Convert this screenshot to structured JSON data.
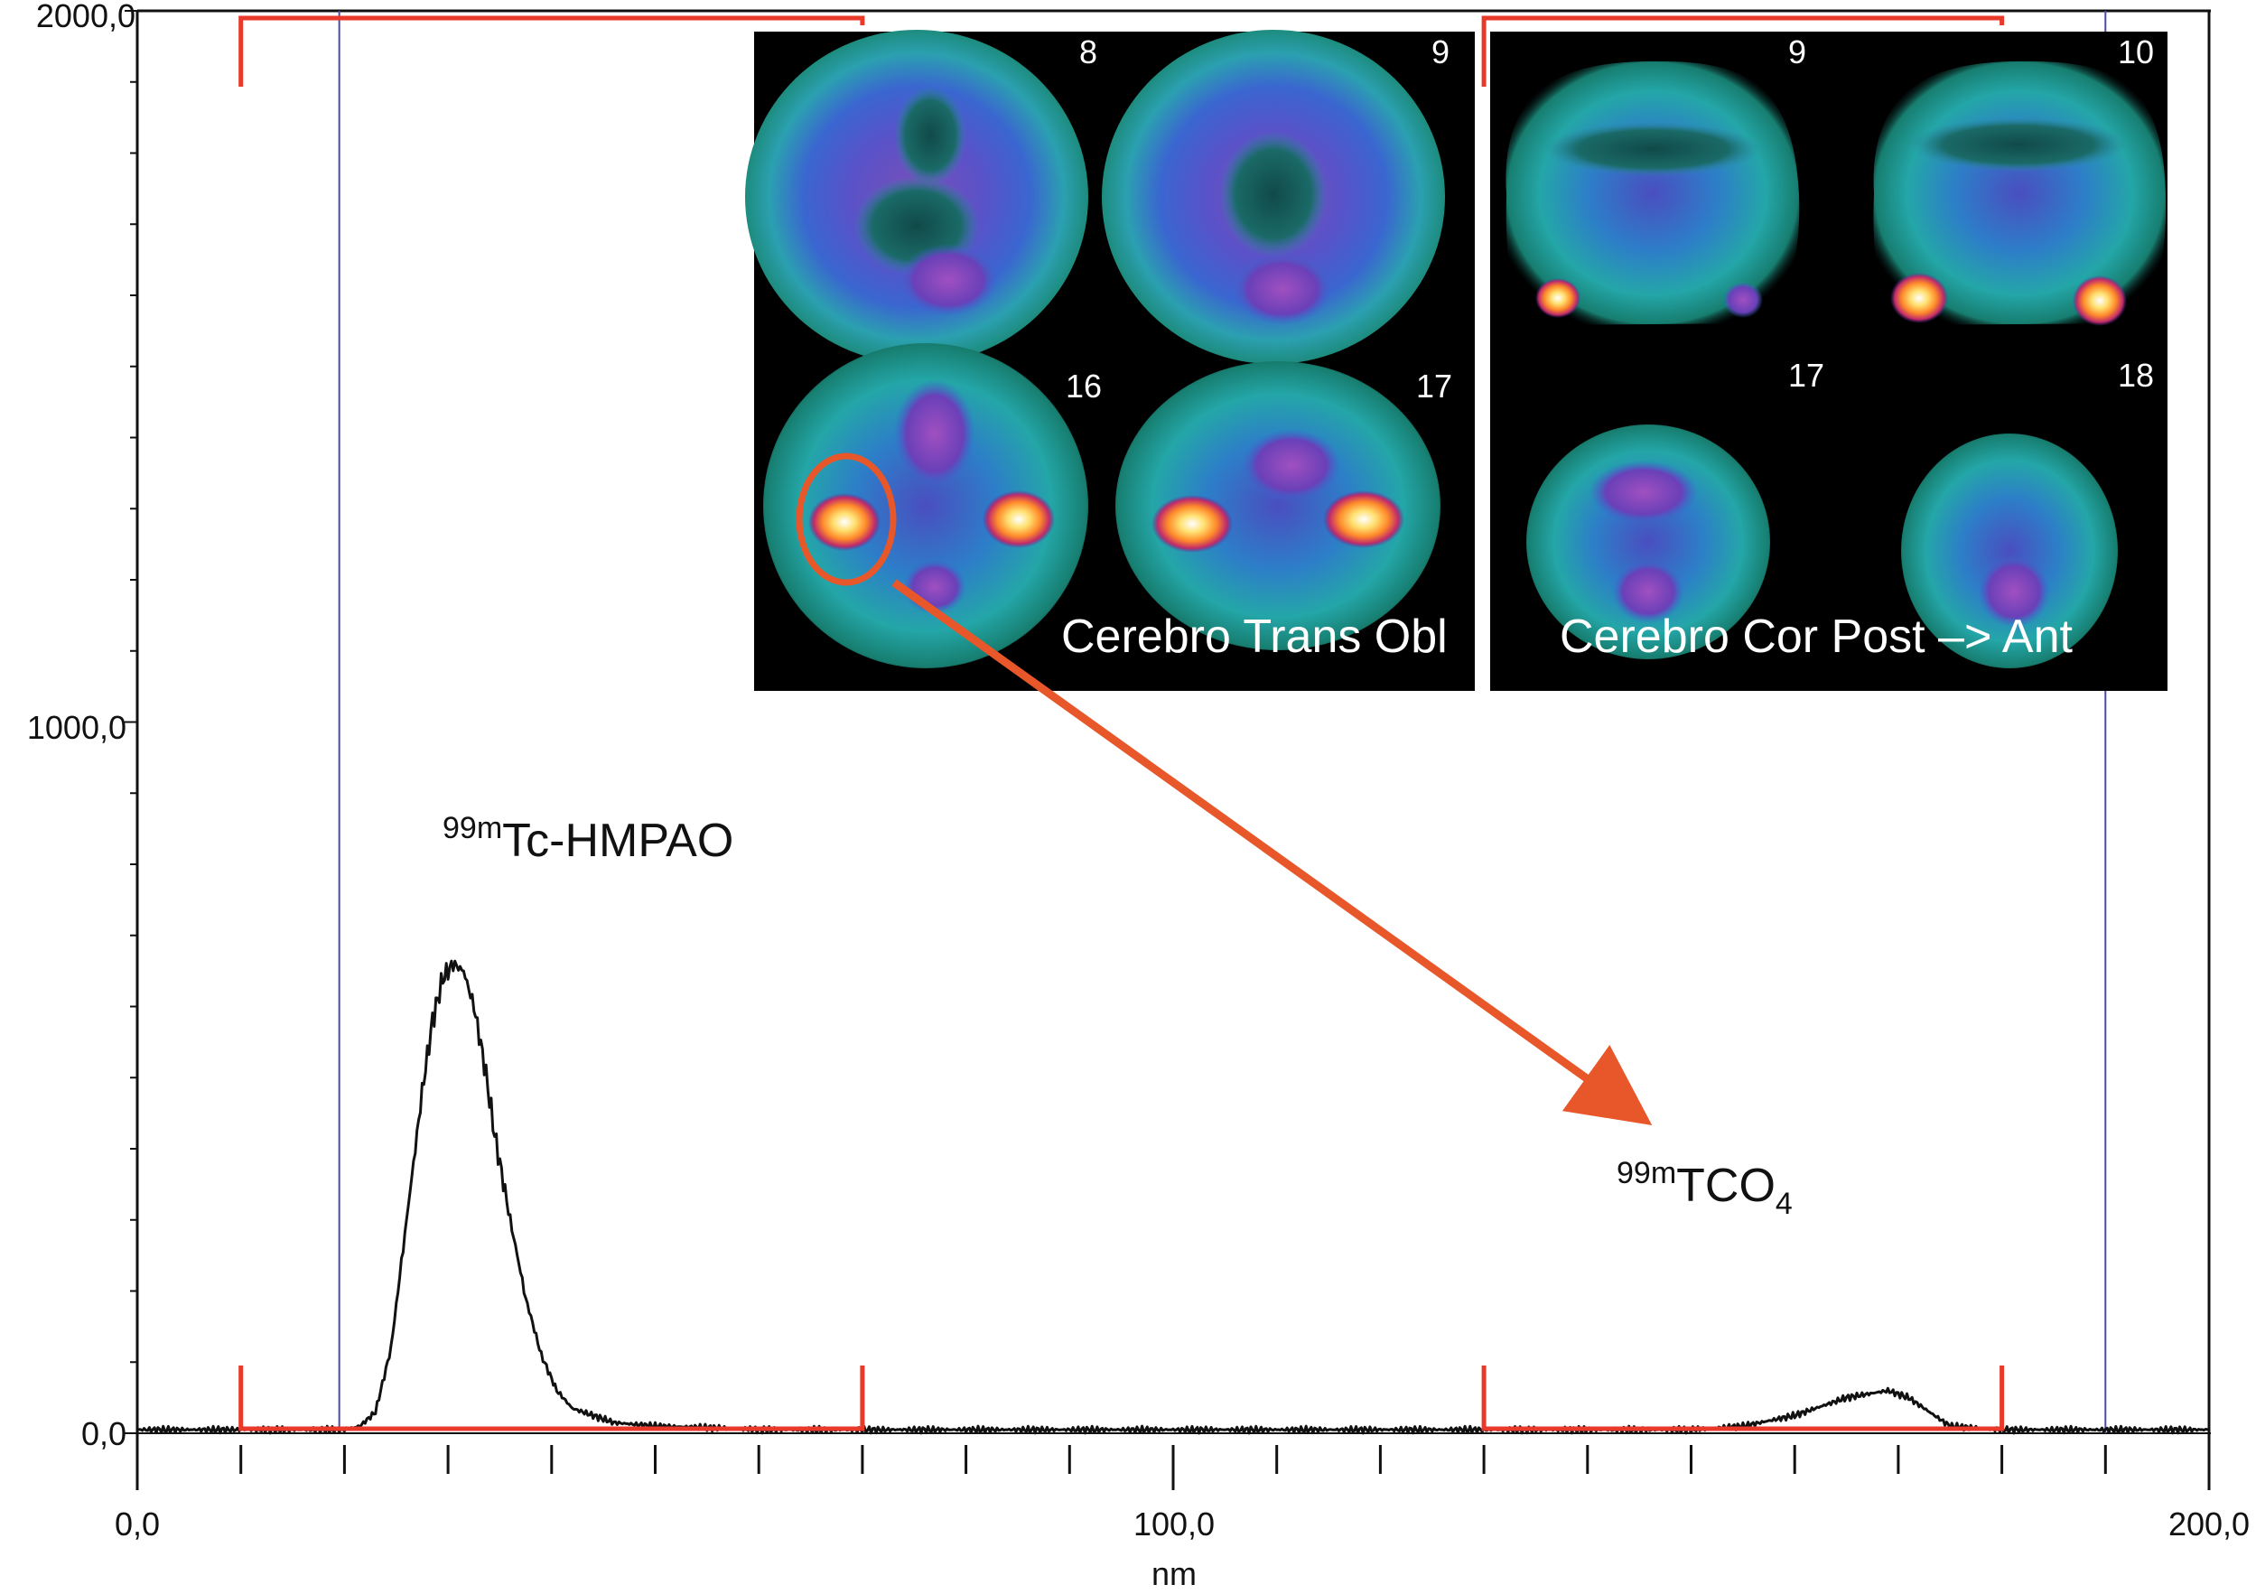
{
  "chart_data": {
    "type": "line",
    "title": "",
    "xlabel": "nm",
    "ylabel": "",
    "xlim": [
      0,
      200
    ],
    "ylim": [
      0,
      2000
    ],
    "x_tick_labels": [
      "0,0",
      "100,0",
      "200,0"
    ],
    "y_tick_labels": [
      "0,0",
      "1000,0",
      "2000,0"
    ],
    "grid": false,
    "series": [
      {
        "color": "#111111",
        "x": [
          0,
          10,
          20,
          21.5,
          23,
          24.5,
          26,
          27.5,
          28.5,
          29.5,
          30.5,
          31.5,
          32.5,
          33.5,
          34.5,
          36,
          37.5,
          39,
          40.5,
          42,
          44,
          46,
          50,
          55,
          60,
          70,
          80,
          100,
          120,
          150,
          155,
          160,
          163,
          165,
          167,
          169,
          171,
          173,
          175,
          180,
          190,
          200
        ],
        "y": [
          5,
          5,
          5,
          10,
          30,
          120,
          300,
          480,
          580,
          640,
          660,
          650,
          600,
          520,
          420,
          300,
          190,
          110,
          60,
          35,
          25,
          15,
          10,
          8,
          5,
          5,
          5,
          5,
          5,
          5,
          10,
          25,
          40,
          50,
          55,
          60,
          50,
          30,
          10,
          5,
          5,
          5
        ]
      }
    ],
    "annotations": {
      "peak1": {
        "sup": "99m",
        "text": "Tc-HMPAO",
        "x": 30,
        "y": 1700
      },
      "peak2": {
        "sup": "99m",
        "text": "TCO",
        "sub": "4",
        "x": 165,
        "y": 1280
      }
    },
    "markers": {
      "vertical_lines_x": [
        19.5,
        190
      ],
      "brackets_nm": [
        [
          10,
          70
        ],
        [
          130,
          180
        ]
      ],
      "marker_color": "#e8392a",
      "vline_color": "#4a4aa8"
    }
  },
  "inset_left": {
    "slices": [
      "8",
      "9",
      "16",
      "17"
    ],
    "caption": "Cerebro Trans Obl"
  },
  "inset_right": {
    "slices": [
      "9",
      "10",
      "17",
      "18"
    ],
    "caption": "Cerebro Cor Post –> Ant"
  },
  "colors": {
    "arrow": "#e8572a",
    "circle": "#e8572a",
    "inset_bg": "#000000"
  }
}
